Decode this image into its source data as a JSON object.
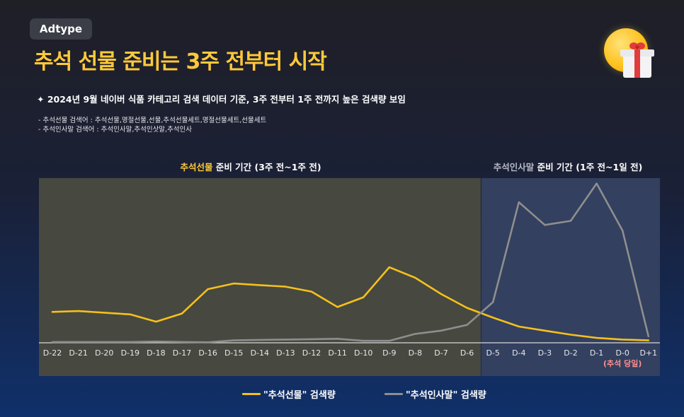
{
  "header": {
    "badge": "Adtype",
    "title": "추석 선물 준비는 3주 전부터 시작",
    "subtitle": "✦ 2024년 9월 네이버 식품 카테고리 검색 데이터 기준, 3주 전부터 1주 전까지 높은 검색량 보임",
    "notes": [
      "- 추석선물 검색어 : 추석선물,명절선물,선물,추석선물세트,명절선물세트,선물세트",
      "- 추석인사말 검색어 : 추석인사말,추석인삿말,추석인사"
    ]
  },
  "periods": {
    "gift": {
      "highlight": "추석선물",
      "rest": " 준비 기간 (3주 전~1주 전)"
    },
    "greeting": {
      "highlight": "추석인사말",
      "rest": " 준비 기간 (1주 전~1일 전)"
    }
  },
  "colors": {
    "gift_line": "#f5c01c",
    "greeting_line": "#8e8e8e",
    "gift_panel": "#47483f",
    "greeting_panel": "#33405f",
    "chuseok_label": "#ff8f8f"
  },
  "chart_data": {
    "type": "line",
    "categories": [
      "D-22",
      "D-21",
      "D-20",
      "D-19",
      "D-18",
      "D-17",
      "D-16",
      "D-15",
      "D-14",
      "D-13",
      "D-12",
      "D-11",
      "D-10",
      "D-9",
      "D-8",
      "D-7",
      "D-6",
      "D-5",
      "D-4",
      "D-3",
      "D-2",
      "D-1",
      "D-0",
      "D+1"
    ],
    "category_annotation": {
      "category": "D-0",
      "text": "(추석 당일)"
    },
    "ylim": [
      0,
      100
    ],
    "grid": false,
    "legend": "bottom",
    "series": [
      {
        "name": "\"추석선물\" 검색량",
        "color": "#f5c01c",
        "values": [
          19,
          19.5,
          18.5,
          17.5,
          13,
          18,
          33,
          36.5,
          35.5,
          34.5,
          31.5,
          22,
          28,
          46.5,
          40,
          30,
          21.5,
          15.5,
          10,
          7.5,
          5,
          3,
          2,
          1.5
        ]
      },
      {
        "name": "\"추석인사말\" 검색량",
        "color": "#8e8e8e",
        "values": [
          0.5,
          0.5,
          0.5,
          0.5,
          0.8,
          0.5,
          0.3,
          1.5,
          1.8,
          2,
          2.2,
          2.5,
          1.2,
          1.2,
          5.5,
          7.5,
          11,
          25,
          86.5,
          72.5,
          75,
          98,
          69,
          4
        ]
      }
    ]
  }
}
